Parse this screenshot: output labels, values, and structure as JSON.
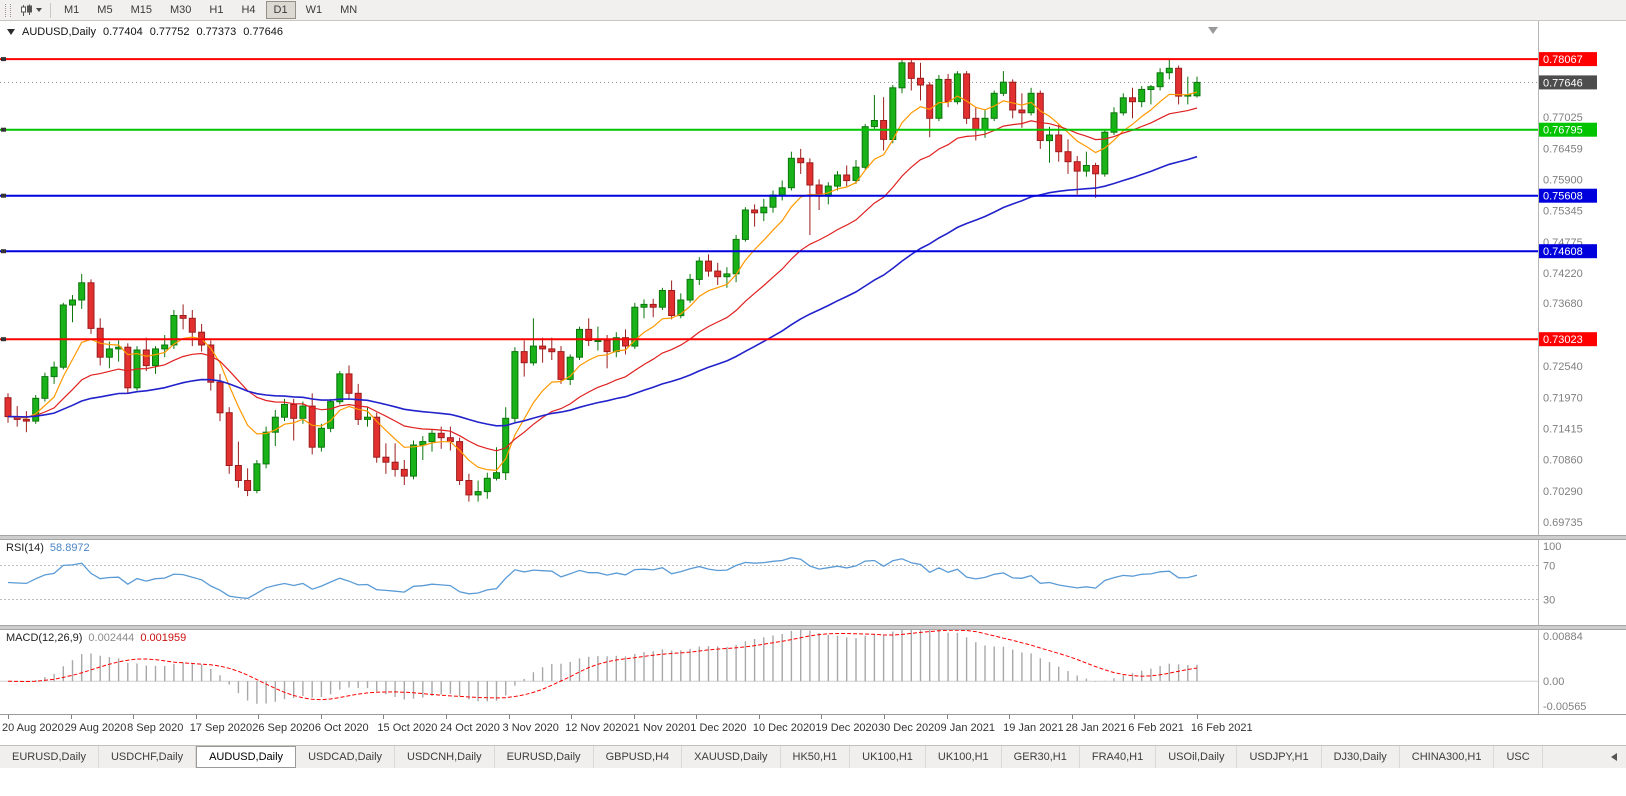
{
  "toolbar": {
    "timeframes": [
      "M1",
      "M5",
      "M15",
      "M30",
      "H1",
      "H4",
      "D1",
      "W1",
      "MN"
    ],
    "active_timeframe": "D1"
  },
  "chart_header": {
    "symbol": "AUDUSD,Daily",
    "open": "0.77404",
    "high": "0.77752",
    "low": "0.77373",
    "close": "0.77646"
  },
  "price_axis": {
    "labels": [
      "0.77025",
      "0.76459",
      "0.75900",
      "0.75345",
      "0.74775",
      "0.74220",
      "0.73680",
      "0.72540",
      "0.71970",
      "0.71415",
      "0.70860",
      "0.70290",
      "0.69735"
    ]
  },
  "date_axis": {
    "labels": [
      "20 Aug 2020",
      "29 Aug 2020",
      "8 Sep 2020",
      "17 Sep 2020",
      "26 Sep 2020",
      "6 Oct 2020",
      "15 Oct 2020",
      "24 Oct 2020",
      "3 Nov 2020",
      "12 Nov 2020",
      "21 Nov 2020",
      "1 Dec 2020",
      "10 Dec 2020",
      "19 Dec 2020",
      "30 Dec 2020",
      "9 Jan 2021",
      "19 Jan 2021",
      "28 Jan 2021",
      "6 Feb 2021",
      "16 Feb 2021"
    ]
  },
  "rsi_panel": {
    "name": "RSI(14)",
    "value": "58.8972",
    "levels": [
      "100",
      "70",
      "30"
    ]
  },
  "macd_panel": {
    "name": "MACD(12,26,9)",
    "value_main": "0.002444",
    "value_signal": "0.001959",
    "levels": [
      "0.00884",
      "0.00",
      "-0.00565"
    ]
  },
  "bottom_tabs": {
    "items": [
      "EURUSD,Daily",
      "USDCHF,Daily",
      "AUDUSD,Daily",
      "USDCAD,Daily",
      "USDCNH,Daily",
      "EURUSD,Daily",
      "GBPUSD,H4",
      "XAUUSD,Daily",
      "HK50,H1",
      "UK100,H1",
      "UK100,H1",
      "GER30,H1",
      "FRA40,H1",
      "USOil,Daily",
      "USDJPY,H1",
      "DJ30,Daily",
      "CHINA300,H1",
      "USC"
    ],
    "active_index": 2
  },
  "chart_data": {
    "type": "candlestick",
    "symbol": "AUDUSD",
    "timeframe": "Daily",
    "y_range": [
      0.695,
      0.786
    ],
    "ohlc": [
      [
        0.7197,
        0.7205,
        0.7152,
        0.7163
      ],
      [
        0.7163,
        0.7182,
        0.7145,
        0.7158
      ],
      [
        0.7158,
        0.7173,
        0.7135,
        0.7155
      ],
      [
        0.7155,
        0.7202,
        0.715,
        0.7196
      ],
      [
        0.7196,
        0.7242,
        0.719,
        0.7235
      ],
      [
        0.7235,
        0.7262,
        0.7222,
        0.7252
      ],
      [
        0.7252,
        0.7368,
        0.7248,
        0.7364
      ],
      [
        0.7364,
        0.7382,
        0.7333,
        0.7373
      ],
      [
        0.7373,
        0.742,
        0.7357,
        0.7404
      ],
      [
        0.7404,
        0.741,
        0.7312,
        0.7322
      ],
      [
        0.7322,
        0.734,
        0.7255,
        0.727
      ],
      [
        0.727,
        0.7298,
        0.725,
        0.7285
      ],
      [
        0.7285,
        0.73,
        0.7262,
        0.7288
      ],
      [
        0.7288,
        0.7295,
        0.7205,
        0.7215
      ],
      [
        0.7215,
        0.729,
        0.721,
        0.7283
      ],
      [
        0.7283,
        0.7305,
        0.7245,
        0.7255
      ],
      [
        0.7255,
        0.729,
        0.724,
        0.7285
      ],
      [
        0.7285,
        0.731,
        0.727,
        0.7292
      ],
      [
        0.7292,
        0.7355,
        0.7285,
        0.7345
      ],
      [
        0.7345,
        0.7365,
        0.732,
        0.734
      ],
      [
        0.734,
        0.7355,
        0.729,
        0.7315
      ],
      [
        0.7315,
        0.733,
        0.728,
        0.7292
      ],
      [
        0.7292,
        0.73,
        0.721,
        0.7225
      ],
      [
        0.7225,
        0.724,
        0.7155,
        0.717
      ],
      [
        0.717,
        0.718,
        0.706,
        0.7075
      ],
      [
        0.7075,
        0.7118,
        0.7035,
        0.7048
      ],
      [
        0.7048,
        0.707,
        0.702,
        0.703
      ],
      [
        0.703,
        0.7085,
        0.7025,
        0.7078
      ],
      [
        0.7078,
        0.7145,
        0.707,
        0.7135
      ],
      [
        0.7135,
        0.7175,
        0.711,
        0.7162
      ],
      [
        0.7162,
        0.7195,
        0.7155,
        0.7185
      ],
      [
        0.7185,
        0.7195,
        0.712,
        0.716
      ],
      [
        0.716,
        0.719,
        0.715,
        0.7182
      ],
      [
        0.7182,
        0.7205,
        0.7095,
        0.7108
      ],
      [
        0.7108,
        0.715,
        0.71,
        0.7142
      ],
      [
        0.7142,
        0.7195,
        0.7135,
        0.719
      ],
      [
        0.719,
        0.7245,
        0.7185,
        0.724
      ],
      [
        0.724,
        0.7255,
        0.7195,
        0.7205
      ],
      [
        0.7205,
        0.7222,
        0.7148,
        0.7158
      ],
      [
        0.7158,
        0.718,
        0.7145,
        0.7162
      ],
      [
        0.7162,
        0.717,
        0.708,
        0.709
      ],
      [
        0.709,
        0.7115,
        0.706,
        0.7081
      ],
      [
        0.7081,
        0.7115,
        0.7055,
        0.7068
      ],
      [
        0.7068,
        0.7085,
        0.704,
        0.7056
      ],
      [
        0.7056,
        0.712,
        0.705,
        0.7112
      ],
      [
        0.7112,
        0.7128,
        0.7085,
        0.7118
      ],
      [
        0.7118,
        0.714,
        0.71,
        0.7133
      ],
      [
        0.7133,
        0.7145,
        0.7105,
        0.7125
      ],
      [
        0.7125,
        0.7145,
        0.7102,
        0.7118
      ],
      [
        0.7118,
        0.7125,
        0.704,
        0.7048
      ],
      [
        0.7048,
        0.706,
        0.701,
        0.7022
      ],
      [
        0.7022,
        0.7048,
        0.701,
        0.7028
      ],
      [
        0.7028,
        0.7062,
        0.7015,
        0.7052
      ],
      [
        0.7052,
        0.7108,
        0.7048,
        0.7062
      ],
      [
        0.7062,
        0.718,
        0.7049,
        0.716
      ],
      [
        0.716,
        0.7288,
        0.7152,
        0.728
      ],
      [
        0.728,
        0.73,
        0.7235,
        0.726
      ],
      [
        0.726,
        0.734,
        0.7255,
        0.729
      ],
      [
        0.729,
        0.7305,
        0.726,
        0.7285
      ],
      [
        0.7285,
        0.7305,
        0.7265,
        0.728
      ],
      [
        0.728,
        0.729,
        0.7222,
        0.723
      ],
      [
        0.723,
        0.7275,
        0.722,
        0.727
      ],
      [
        0.727,
        0.7325,
        0.7265,
        0.732
      ],
      [
        0.732,
        0.734,
        0.729,
        0.73
      ],
      [
        0.73,
        0.7325,
        0.7282,
        0.73
      ],
      [
        0.73,
        0.731,
        0.725,
        0.728
      ],
      [
        0.728,
        0.7315,
        0.727,
        0.7305
      ],
      [
        0.7305,
        0.732,
        0.7275,
        0.729
      ],
      [
        0.729,
        0.7368,
        0.7285,
        0.736
      ],
      [
        0.736,
        0.7374,
        0.734,
        0.7365
      ],
      [
        0.7365,
        0.7375,
        0.7342,
        0.736
      ],
      [
        0.736,
        0.7395,
        0.7355,
        0.739
      ],
      [
        0.739,
        0.7408,
        0.7338,
        0.7345
      ],
      [
        0.7345,
        0.7385,
        0.734,
        0.7373
      ],
      [
        0.7373,
        0.742,
        0.7368,
        0.741
      ],
      [
        0.741,
        0.745,
        0.74,
        0.7443
      ],
      [
        0.7443,
        0.7455,
        0.7415,
        0.7425
      ],
      [
        0.7425,
        0.744,
        0.74,
        0.7415
      ],
      [
        0.7415,
        0.7432,
        0.7395,
        0.742
      ],
      [
        0.742,
        0.749,
        0.7405,
        0.7482
      ],
      [
        0.7482,
        0.754,
        0.7478,
        0.7535
      ],
      [
        0.7535,
        0.7545,
        0.7505,
        0.753
      ],
      [
        0.753,
        0.7555,
        0.7515,
        0.754
      ],
      [
        0.754,
        0.757,
        0.753,
        0.7562
      ],
      [
        0.7562,
        0.7588,
        0.7552,
        0.7575
      ],
      [
        0.7575,
        0.764,
        0.757,
        0.7628
      ],
      [
        0.7628,
        0.7645,
        0.76,
        0.762
      ],
      [
        0.762,
        0.7628,
        0.749,
        0.758
      ],
      [
        0.758,
        0.759,
        0.7535,
        0.756
      ],
      [
        0.756,
        0.7585,
        0.7545,
        0.7578
      ],
      [
        0.7578,
        0.7605,
        0.757,
        0.7598
      ],
      [
        0.7598,
        0.7615,
        0.7578,
        0.7588
      ],
      [
        0.7588,
        0.7625,
        0.7582,
        0.7612
      ],
      [
        0.7612,
        0.769,
        0.7608,
        0.7685
      ],
      [
        0.7685,
        0.7742,
        0.768,
        0.7696
      ],
      [
        0.7696,
        0.7738,
        0.7642,
        0.7662
      ],
      [
        0.7662,
        0.776,
        0.7655,
        0.7755
      ],
      [
        0.7755,
        0.7805,
        0.7745,
        0.78
      ],
      [
        0.78,
        0.7806,
        0.775,
        0.7772
      ],
      [
        0.7772,
        0.78,
        0.7732,
        0.776
      ],
      [
        0.776,
        0.7765,
        0.7666,
        0.77
      ],
      [
        0.77,
        0.7778,
        0.7695,
        0.777
      ],
      [
        0.777,
        0.778,
        0.772,
        0.773
      ],
      [
        0.773,
        0.7785,
        0.7725,
        0.778
      ],
      [
        0.778,
        0.7785,
        0.769,
        0.77
      ],
      [
        0.77,
        0.772,
        0.766,
        0.768
      ],
      [
        0.768,
        0.7715,
        0.7665,
        0.77
      ],
      [
        0.77,
        0.775,
        0.7695,
        0.7745
      ],
      [
        0.7745,
        0.7785,
        0.774,
        0.7765
      ],
      [
        0.7765,
        0.777,
        0.77,
        0.7715
      ],
      [
        0.7715,
        0.7745,
        0.7683,
        0.771
      ],
      [
        0.771,
        0.7755,
        0.7705,
        0.7745
      ],
      [
        0.7745,
        0.775,
        0.7645,
        0.766
      ],
      [
        0.766,
        0.7685,
        0.762,
        0.767
      ],
      [
        0.767,
        0.769,
        0.7622,
        0.764
      ],
      [
        0.764,
        0.7662,
        0.76,
        0.7622
      ],
      [
        0.7622,
        0.7632,
        0.7563,
        0.7605
      ],
      [
        0.7605,
        0.764,
        0.7595,
        0.7615
      ],
      [
        0.7615,
        0.762,
        0.7557,
        0.76
      ],
      [
        0.76,
        0.7678,
        0.7595,
        0.7675
      ],
      [
        0.7675,
        0.772,
        0.767,
        0.771
      ],
      [
        0.771,
        0.7745,
        0.7705,
        0.7737
      ],
      [
        0.7737,
        0.7755,
        0.77,
        0.773
      ],
      [
        0.773,
        0.7758,
        0.772,
        0.7752
      ],
      [
        0.7752,
        0.776,
        0.7725,
        0.7757
      ],
      [
        0.7757,
        0.779,
        0.775,
        0.7782
      ],
      [
        0.7782,
        0.7806,
        0.777,
        0.779
      ],
      [
        0.779,
        0.7795,
        0.7725,
        0.774
      ],
      [
        0.774,
        0.7775,
        0.7725,
        0.7742
      ],
      [
        0.77404,
        0.77752,
        0.77373,
        0.77646
      ]
    ],
    "horizontal_lines": [
      {
        "price": 0.78067,
        "color": "#ff0000",
        "label": "0.78067"
      },
      {
        "price": 0.76795,
        "color": "#00c400",
        "label": "0.76795"
      },
      {
        "price": 0.75608,
        "color": "#0000dd",
        "label": "0.75608"
      },
      {
        "price": 0.74608,
        "color": "#0000dd",
        "label": "0.74608"
      },
      {
        "price": 0.73023,
        "color": "#ff0000",
        "label": "0.73023"
      }
    ],
    "bid_price": {
      "price": 0.77646,
      "label": "0.77646",
      "color": "#4d4d4d"
    },
    "moving_averages": [
      {
        "name": "fast",
        "period": 8,
        "color": "#ff9900"
      },
      {
        "name": "mid",
        "period": 21,
        "color": "#e02020"
      },
      {
        "name": "slow",
        "period": 55,
        "color": "#2222cc"
      }
    ],
    "rsi": {
      "period": 14,
      "levels": [
        70,
        30
      ],
      "line_color": "#5b9bd5",
      "range": [
        0,
        100
      ]
    },
    "macd": {
      "fast": 12,
      "slow": 26,
      "signal": 9,
      "hist_color": "#a8a8a8",
      "signal_color": "#ff0000",
      "y_max": 0.00884,
      "y_min": -0.00565
    },
    "colors": {
      "up": "#19b219",
      "up_border": "#0b770b",
      "down": "#e23030",
      "down_border": "#9c1d1d",
      "background": "#ffffff"
    }
  }
}
